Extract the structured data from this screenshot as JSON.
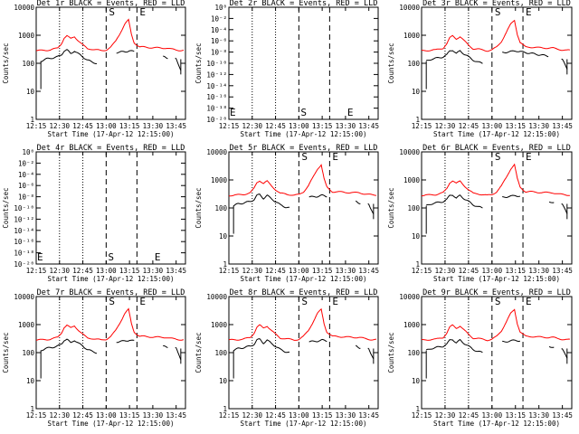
{
  "chart_data": [
    {
      "type": "line",
      "scale": "log",
      "title": "Det 1r BLACK = Events, RED = LLD",
      "ylabel": "Counts/sec",
      "xlabel": "Start Time (17-Apr-12 12:15:00)",
      "xticks": [
        "12:15",
        "12:30",
        "12:45",
        "13:00",
        "13:15",
        "13:30",
        "13:45"
      ],
      "ytick_labels": [
        "1",
        "10",
        "100",
        "1000",
        "10000"
      ],
      "ylim": [
        1,
        10000
      ],
      "markers": [
        {
          "label": "S"
        },
        {
          "label": "E"
        }
      ],
      "has_data": true,
      "events_gaps": [
        [
          12.9,
          13.1
        ],
        [
          13.3,
          13.6
        ],
        [
          13.66,
          13.73
        ]
      ],
      "series": [
        {
          "name": "Events",
          "color": "#000000"
        },
        {
          "name": "LLD",
          "color": "#ff0000"
        }
      ]
    },
    {
      "type": "line",
      "scale": "log",
      "title": "Det 2r BLACK = Events, RED = LLD",
      "ylabel": "Counts/sec",
      "xlabel": "Start Time (17-Apr-12 12:15:00)",
      "xticks": [
        "12:15",
        "12:30",
        "12:45",
        "13:00",
        "13:15",
        "13:30",
        "13:45"
      ],
      "ytick_labels": [
        "10⁰",
        "10⁻²",
        "10⁻⁴",
        "10⁻⁶",
        "10⁻⁸",
        "10⁻¹⁰",
        "10⁻¹²",
        "10⁻¹⁴",
        "10⁻¹⁶",
        "10⁻¹⁸",
        "10⁻²⁰"
      ],
      "ylim": [
        1e-20,
        1
      ],
      "markers": [
        {
          "label": "E"
        },
        {
          "label": "S"
        },
        {
          "label": "E"
        }
      ],
      "has_data": false,
      "series": []
    },
    {
      "type": "line",
      "scale": "log",
      "title": "Det 3r BLACK = Events, RED = LLD",
      "ylabel": "Counts/sec",
      "xlabel": "Start Time (17-Apr-12 12:15:00)",
      "xticks": [
        "12:15",
        "12:30",
        "12:45",
        "13:00",
        "13:15",
        "13:30",
        "13:45"
      ],
      "ytick_labels": [
        "1",
        "10",
        "100",
        "1000",
        "10000"
      ],
      "ylim": [
        1,
        10000
      ],
      "markers": [
        {
          "label": "S"
        },
        {
          "label": "E"
        }
      ],
      "has_data": true,
      "events_gaps": [
        [
          12.9,
          13.1
        ],
        [
          13.6,
          13.73
        ]
      ],
      "series": [
        {
          "name": "Events",
          "color": "#000000"
        },
        {
          "name": "LLD",
          "color": "#ff0000"
        }
      ]
    },
    {
      "type": "line",
      "scale": "log",
      "title": "Det 4r BLACK = Events, RED = LLD",
      "ylabel": "Counts/sec",
      "xlabel": "Start Time (17-Apr-12 12:15:00)",
      "xticks": [
        "12:15",
        "12:30",
        "12:45",
        "13:00",
        "13:15",
        "13:30",
        "13:45"
      ],
      "ytick_labels": [
        "10⁰",
        "10⁻²",
        "10⁻⁴",
        "10⁻⁶",
        "10⁻⁸",
        "10⁻¹⁰",
        "10⁻¹²",
        "10⁻¹⁴",
        "10⁻¹⁶",
        "10⁻¹⁸",
        "10⁻²⁰"
      ],
      "ylim": [
        1e-20,
        1
      ],
      "markers": [
        {
          "label": "E"
        },
        {
          "label": "S"
        },
        {
          "label": "E"
        }
      ],
      "has_data": false,
      "series": []
    },
    {
      "type": "line",
      "scale": "log",
      "title": "Det 5r BLACK = Events, RED = LLD",
      "ylabel": "Counts/sec",
      "xlabel": "Start Time (17-Apr-12 12:15:00)",
      "xticks": [
        "12:15",
        "12:30",
        "12:45",
        "13:00",
        "13:15",
        "13:30",
        "13:45"
      ],
      "ytick_labels": [
        "1",
        "10",
        "100",
        "1000",
        "10000"
      ],
      "ylim": [
        1,
        10000
      ],
      "markers": [
        {
          "label": "S"
        },
        {
          "label": "E"
        }
      ],
      "has_data": true,
      "events_gaps": [
        [
          12.9,
          13.1
        ],
        [
          13.3,
          13.6
        ],
        [
          13.66,
          13.73
        ]
      ],
      "series": [
        {
          "name": "Events",
          "color": "#000000"
        },
        {
          "name": "LLD",
          "color": "#ff0000"
        }
      ]
    },
    {
      "type": "line",
      "scale": "log",
      "title": "Det 6r BLACK = Events, RED = LLD",
      "ylabel": "Counts/sec",
      "xlabel": "Start Time (17-Apr-12 12:15:00)",
      "xticks": [
        "12:15",
        "12:30",
        "12:45",
        "13:00",
        "13:15",
        "13:30",
        "13:45"
      ],
      "ytick_labels": [
        "1",
        "10",
        "100",
        "1000",
        "10000"
      ],
      "ylim": [
        1,
        10000
      ],
      "markers": [
        {
          "label": "S"
        },
        {
          "label": "E"
        }
      ],
      "has_data": true,
      "events_gaps": [
        [
          12.9,
          13.1
        ],
        [
          13.3,
          13.6
        ],
        [
          13.66,
          13.73
        ]
      ],
      "series": [
        {
          "name": "Events",
          "color": "#000000"
        },
        {
          "name": "LLD",
          "color": "#ff0000"
        }
      ]
    },
    {
      "type": "line",
      "scale": "log",
      "title": "Det 7r BLACK = Events, RED = LLD",
      "ylabel": "Counts/sec",
      "xlabel": "Start Time (17-Apr-12 12:15:00)",
      "xticks": [
        "12:15",
        "12:30",
        "12:45",
        "13:00",
        "13:15",
        "13:30",
        "13:45"
      ],
      "ytick_labels": [
        "1",
        "10",
        "100",
        "1000",
        "10000"
      ],
      "ylim": [
        1,
        10000
      ],
      "markers": [
        {
          "label": "S"
        },
        {
          "label": "E"
        }
      ],
      "has_data": true,
      "events_gaps": [
        [
          12.9,
          13.1
        ],
        [
          13.3,
          13.6
        ],
        [
          13.66,
          13.73
        ]
      ],
      "series": [
        {
          "name": "Events",
          "color": "#000000"
        },
        {
          "name": "LLD",
          "color": "#ff0000"
        }
      ]
    },
    {
      "type": "line",
      "scale": "log",
      "title": "Det 8r BLACK = Events, RED = LLD",
      "ylabel": "Counts/sec",
      "xlabel": "Start Time (17-Apr-12 12:15:00)",
      "xticks": [
        "12:15",
        "12:30",
        "12:45",
        "13:00",
        "13:15",
        "13:30",
        "13:45"
      ],
      "ytick_labels": [
        "1",
        "10",
        "100",
        "1000",
        "10000"
      ],
      "ylim": [
        1,
        10000
      ],
      "markers": [
        {
          "label": "S"
        },
        {
          "label": "E"
        }
      ],
      "has_data": true,
      "events_gaps": [
        [
          12.9,
          13.1
        ],
        [
          13.3,
          13.6
        ],
        [
          13.66,
          13.73
        ]
      ],
      "series": [
        {
          "name": "Events",
          "color": "#000000"
        },
        {
          "name": "LLD",
          "color": "#ff0000"
        }
      ]
    },
    {
      "type": "line",
      "scale": "log",
      "title": "Det 9r BLACK = Events, RED = LLD",
      "ylabel": "Counts/sec",
      "xlabel": "Start Time (17-Apr-12 12:15:00)",
      "xticks": [
        "12:15",
        "12:30",
        "12:45",
        "13:00",
        "13:15",
        "13:30",
        "13:45"
      ],
      "ytick_labels": [
        "1",
        "10",
        "100",
        "1000",
        "10000"
      ],
      "ylim": [
        1,
        10000
      ],
      "markers": [
        {
          "label": "S"
        },
        {
          "label": "E"
        }
      ],
      "has_data": true,
      "events_gaps": [
        [
          12.9,
          13.1
        ],
        [
          13.3,
          13.6
        ],
        [
          13.66,
          13.73
        ]
      ],
      "series": [
        {
          "name": "Events",
          "color": "#000000"
        },
        {
          "name": "LLD",
          "color": "#ff0000"
        }
      ]
    }
  ],
  "lld_profile": {
    "t": [
      12.25,
      12.4,
      12.48,
      12.52,
      12.55,
      12.58,
      12.62,
      12.66,
      12.7,
      12.75,
      12.8,
      12.85,
      12.9,
      12.95,
      13.0,
      13.05,
      13.1,
      13.15,
      13.2,
      13.24,
      13.27,
      13.3,
      13.33,
      13.36,
      13.4,
      13.5,
      13.6,
      13.65,
      13.7,
      13.75,
      13.8
    ],
    "counts": [
      280,
      300,
      350,
      500,
      800,
      950,
      750,
      900,
      650,
      450,
      330,
      320,
      300,
      280,
      300,
      380,
      600,
      1200,
      2500,
      3500,
      1100,
      550,
      450,
      380,
      380,
      360,
      350,
      350,
      320,
      300,
      290
    ]
  },
  "events_profile": {
    "t": [
      12.3,
      12.35,
      12.4,
      12.48,
      12.52,
      12.55,
      12.58,
      12.62,
      12.66,
      12.7,
      12.75,
      12.8,
      12.85,
      12.9,
      13.1,
      13.15,
      13.2,
      13.25,
      13.3,
      13.6,
      13.65,
      13.73,
      13.75,
      13.8
    ],
    "counts": [
      120,
      140,
      150,
      170,
      200,
      280,
      300,
      220,
      280,
      220,
      170,
      130,
      110,
      100,
      240,
      250,
      260,
      280,
      260,
      180,
      150,
      150,
      140,
      60
    ]
  }
}
